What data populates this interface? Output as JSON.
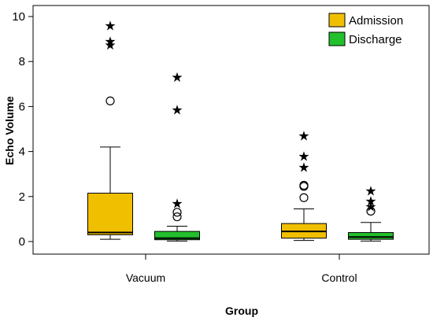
{
  "chart_data": {
    "type": "boxplot",
    "xlabel": "Group",
    "ylabel": "Echo Volume",
    "ylim": [
      0,
      10.5
    ],
    "yticks": [
      0,
      2,
      4,
      6,
      8,
      10
    ],
    "categories": [
      "Vacuum",
      "Control"
    ],
    "legend": {
      "placement": "top-right"
    },
    "grid": false,
    "series": [
      {
        "name": "Admission",
        "color": "#f0c000",
        "boxes": [
          {
            "category": "Vacuum",
            "min": 0.1,
            "q1": 0.3,
            "median": 0.4,
            "q3": 2.15,
            "max": 4.2,
            "outliers_circle": [
              6.25
            ],
            "outliers_star": [
              8.75,
              8.9,
              9.6
            ]
          },
          {
            "category": "Control",
            "min": 0.05,
            "q1": 0.15,
            "median": 0.45,
            "q3": 0.8,
            "max": 1.45,
            "outliers_circle": [
              1.95,
              2.45,
              2.5
            ],
            "outliers_star": [
              3.3,
              3.8,
              4.7
            ]
          }
        ]
      },
      {
        "name": "Discharge",
        "color": "#22c02c",
        "boxes": [
          {
            "category": "Vacuum",
            "min": 0.02,
            "q1": 0.08,
            "median": 0.15,
            "q3": 0.45,
            "max": 0.68,
            "outliers_circle": [
              1.1,
              1.3
            ],
            "outliers_star": [
              1.7,
              5.85,
              7.3
            ]
          },
          {
            "category": "Control",
            "min": 0.02,
            "q1": 0.1,
            "median": 0.2,
            "q3": 0.4,
            "max": 0.85,
            "outliers_circle": [
              1.35
            ],
            "outliers_star": [
              1.55,
              1.8,
              2.25
            ]
          }
        ]
      }
    ]
  }
}
